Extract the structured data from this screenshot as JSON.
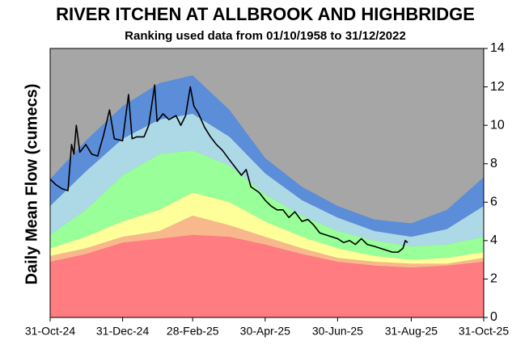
{
  "chart_data": {
    "type": "area",
    "stacked": true,
    "title": "RIVER ITCHEN AT ALLBROOK AND HIGHBRIDGE",
    "subtitle": "Ranking used data from 01/10/1958 to 31/12/2022",
    "y_label": "Daily Mean Flow (cumecs)",
    "background_color": "#a6a6a6",
    "y_axis_side": "right",
    "ylim": [
      0,
      14
    ],
    "yticks": [
      0,
      2,
      4,
      6,
      8,
      10,
      12,
      14
    ],
    "xlim": [
      "2024-10-31",
      "2025-10-31"
    ],
    "xticks": [
      {
        "value": "2024-10-31",
        "label": "31-Oct-24"
      },
      {
        "value": "2024-12-31",
        "label": "31-Dec-24"
      },
      {
        "value": "2025-02-28",
        "label": "28-Feb-25"
      },
      {
        "value": "2025-04-30",
        "label": "30-Apr-25"
      },
      {
        "value": "2025-06-30",
        "label": "30-Jun-25"
      },
      {
        "value": "2025-08-31",
        "label": "31-Aug-25"
      },
      {
        "value": "2025-10-31",
        "label": "31-Oct-25"
      }
    ],
    "x": [
      "2024-10-31",
      "2024-11-30",
      "2024-12-31",
      "2025-01-31",
      "2025-02-28",
      "2025-03-31",
      "2025-04-30",
      "2025-05-31",
      "2025-06-30",
      "2025-07-31",
      "2025-08-31",
      "2025-09-30",
      "2025-10-31"
    ],
    "series": [
      {
        "type": "area",
        "color": "#ff7c80",
        "values": [
          2.9,
          3.3,
          3.9,
          4.1,
          4.3,
          4.2,
          3.8,
          3.3,
          2.9,
          2.7,
          2.6,
          2.7,
          2.9
        ]
      },
      {
        "type": "area",
        "color": "#f8b88b",
        "values": [
          0.3,
          0.3,
          0.3,
          0.4,
          1.0,
          0.6,
          0.4,
          0.3,
          0.2,
          0.2,
          0.2,
          0.1,
          0.2
        ]
      },
      {
        "type": "area",
        "color": "#ffff99",
        "values": [
          0.4,
          0.6,
          0.8,
          1.1,
          1.2,
          1.2,
          0.8,
          0.6,
          0.5,
          0.3,
          0.2,
          0.3,
          0.3
        ]
      },
      {
        "type": "area",
        "color": "#99ff99",
        "values": [
          0.7,
          1.4,
          2.4,
          2.9,
          2.2,
          1.9,
          1.4,
          1.1,
          0.9,
          0.8,
          0.7,
          0.7,
          0.8
        ]
      },
      {
        "type": "area",
        "color": "#add8e6",
        "values": [
          1.5,
          2.0,
          1.9,
          1.8,
          1.9,
          1.5,
          1.1,
          0.8,
          0.7,
          0.5,
          0.5,
          0.8,
          1.6
        ]
      },
      {
        "type": "area",
        "color": "#5b8dd9",
        "values": [
          1.4,
          1.6,
          1.7,
          1.9,
          2.0,
          1.4,
          0.8,
          0.7,
          0.6,
          0.6,
          0.7,
          1.0,
          1.5
        ]
      },
      {
        "type": "line",
        "color": "#000000",
        "x": [
          "2024-10-31",
          "2024-11-05",
          "2024-11-10",
          "2024-11-15",
          "2024-11-18",
          "2024-11-20",
          "2024-11-22",
          "2024-11-25",
          "2024-11-30",
          "2024-12-05",
          "2024-12-10",
          "2024-12-15",
          "2024-12-20",
          "2024-12-24",
          "2024-12-31",
          "2025-01-05",
          "2025-01-08",
          "2025-01-12",
          "2025-01-18",
          "2025-01-22",
          "2025-01-27",
          "2025-01-29",
          "2025-02-03",
          "2025-02-08",
          "2025-02-14",
          "2025-02-18",
          "2025-02-22",
          "2025-02-26",
          "2025-03-01",
          "2025-03-05",
          "2025-03-10",
          "2025-03-15",
          "2025-03-20",
          "2025-03-25",
          "2025-03-31",
          "2025-04-05",
          "2025-04-10",
          "2025-04-14",
          "2025-04-18",
          "2025-04-25",
          "2025-04-30",
          "2025-05-05",
          "2025-05-10",
          "2025-05-15",
          "2025-05-20",
          "2025-05-25",
          "2025-05-31",
          "2025-06-05",
          "2025-06-10",
          "2025-06-15",
          "2025-06-20",
          "2025-06-25",
          "2025-06-30",
          "2025-07-05",
          "2025-07-10",
          "2025-07-15",
          "2025-07-20",
          "2025-07-25",
          "2025-07-31",
          "2025-08-05",
          "2025-08-10",
          "2025-08-15",
          "2025-08-20",
          "2025-08-24",
          "2025-08-26",
          "2025-08-28"
        ],
        "values": [
          7.2,
          6.9,
          6.7,
          6.6,
          9.0,
          8.5,
          10.0,
          8.6,
          9.0,
          8.5,
          8.4,
          9.5,
          10.8,
          9.3,
          9.2,
          11.6,
          9.3,
          9.4,
          9.4,
          10.0,
          12.1,
          10.2,
          10.6,
          10.3,
          10.5,
          10.0,
          10.5,
          12.0,
          11.0,
          10.6,
          9.9,
          9.4,
          9.0,
          8.7,
          8.2,
          7.8,
          7.4,
          7.7,
          6.8,
          6.5,
          6.1,
          5.8,
          5.6,
          5.6,
          5.2,
          5.5,
          5.0,
          5.1,
          4.8,
          4.4,
          4.3,
          4.2,
          4.1,
          3.9,
          4.0,
          3.8,
          4.1,
          3.8,
          3.7,
          3.6,
          3.5,
          3.4,
          3.4,
          3.6,
          4.0,
          3.9
        ]
      }
    ]
  }
}
